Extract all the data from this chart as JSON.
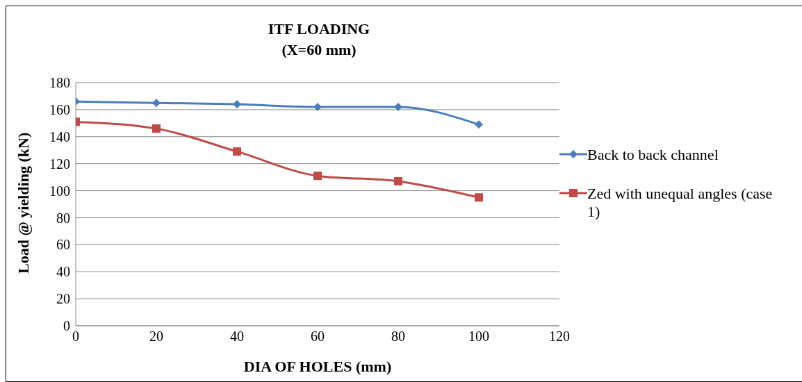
{
  "chart_data": {
    "type": "line",
    "title": "ITF LOADING",
    "subtitle": "(X=60 mm)",
    "xlabel": "DIA OF HOLES (mm)",
    "ylabel": "Load @ yielding (kN)",
    "x": [
      0,
      20,
      40,
      60,
      80,
      100
    ],
    "series": [
      {
        "name": "Back to back channel",
        "color": "#4a7ebb",
        "marker": "diamond",
        "values": [
          166,
          165,
          164,
          162,
          162,
          149
        ]
      },
      {
        "name": "Zed with unequal angles (case 1)",
        "color": "#be4b48",
        "marker": "square",
        "values": [
          151,
          146,
          129,
          111,
          107,
          95
        ]
      }
    ],
    "xlim": [
      0,
      120
    ],
    "xticks": [
      0,
      20,
      40,
      60,
      80,
      100,
      120
    ],
    "ylim": [
      0,
      180
    ],
    "yticks": [
      0,
      20,
      40,
      60,
      80,
      100,
      120,
      140,
      160,
      180
    ],
    "grid": "y",
    "legend": "right"
  }
}
